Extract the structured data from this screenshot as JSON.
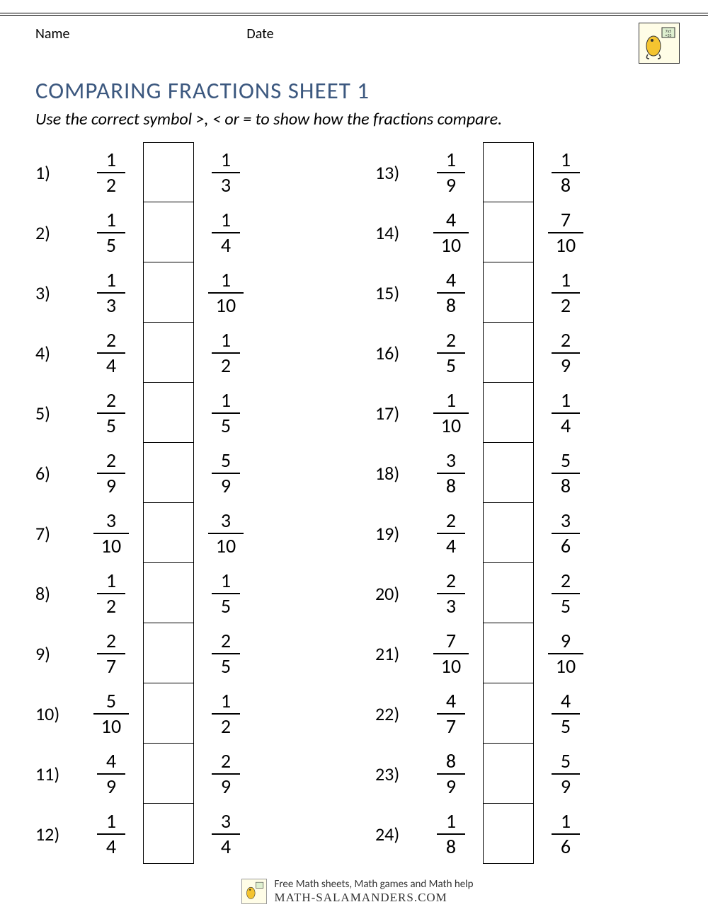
{
  "header": {
    "name_label": "Name",
    "date_label": "Date"
  },
  "title": "COMPARING FRACTIONS SHEET 1",
  "instructions": "Use the correct symbol >, < or = to show how the fractions compare.",
  "columns": [
    [
      {
        "n": "1)",
        "a": [
          "1",
          "2"
        ],
        "b": [
          "1",
          "3"
        ]
      },
      {
        "n": "2)",
        "a": [
          "1",
          "5"
        ],
        "b": [
          "1",
          "4"
        ]
      },
      {
        "n": "3)",
        "a": [
          "1",
          "3"
        ],
        "b": [
          "1",
          "10"
        ]
      },
      {
        "n": "4)",
        "a": [
          "2",
          "4"
        ],
        "b": [
          "1",
          "2"
        ]
      },
      {
        "n": "5)",
        "a": [
          "2",
          "5"
        ],
        "b": [
          "1",
          "5"
        ]
      },
      {
        "n": "6)",
        "a": [
          "2",
          "9"
        ],
        "b": [
          "5",
          "9"
        ]
      },
      {
        "n": "7)",
        "a": [
          "3",
          "10"
        ],
        "b": [
          "3",
          "10"
        ]
      },
      {
        "n": "8)",
        "a": [
          "1",
          "2"
        ],
        "b": [
          "1",
          "5"
        ]
      },
      {
        "n": "9)",
        "a": [
          "2",
          "7"
        ],
        "b": [
          "2",
          "5"
        ]
      },
      {
        "n": "10)",
        "a": [
          "5",
          "10"
        ],
        "b": [
          "1",
          "2"
        ]
      },
      {
        "n": "11)",
        "a": [
          "4",
          "9"
        ],
        "b": [
          "2",
          "9"
        ]
      },
      {
        "n": "12)",
        "a": [
          "1",
          "4"
        ],
        "b": [
          "3",
          "4"
        ]
      }
    ],
    [
      {
        "n": "13)",
        "a": [
          "1",
          "9"
        ],
        "b": [
          "1",
          "8"
        ]
      },
      {
        "n": "14)",
        "a": [
          "4",
          "10"
        ],
        "b": [
          "7",
          "10"
        ]
      },
      {
        "n": "15)",
        "a": [
          "4",
          "8"
        ],
        "b": [
          "1",
          "2"
        ]
      },
      {
        "n": "16)",
        "a": [
          "2",
          "5"
        ],
        "b": [
          "2",
          "9"
        ]
      },
      {
        "n": "17)",
        "a": [
          "1",
          "10"
        ],
        "b": [
          "1",
          "4"
        ]
      },
      {
        "n": "18)",
        "a": [
          "3",
          "8"
        ],
        "b": [
          "5",
          "8"
        ]
      },
      {
        "n": "19)",
        "a": [
          "2",
          "4"
        ],
        "b": [
          "3",
          "6"
        ]
      },
      {
        "n": "20)",
        "a": [
          "2",
          "3"
        ],
        "b": [
          "2",
          "5"
        ]
      },
      {
        "n": "21)",
        "a": [
          "7",
          "10"
        ],
        "b": [
          "9",
          "10"
        ]
      },
      {
        "n": "22)",
        "a": [
          "4",
          "7"
        ],
        "b": [
          "4",
          "5"
        ]
      },
      {
        "n": "23)",
        "a": [
          "8",
          "9"
        ],
        "b": [
          "5",
          "9"
        ]
      },
      {
        "n": "24)",
        "a": [
          "1",
          "8"
        ],
        "b": [
          "1",
          "6"
        ]
      }
    ]
  ],
  "footer": {
    "line1": "Free Math sheets, Math games and Math help",
    "site": "MATH-SALAMANDERS.COM"
  },
  "colors": {
    "title": "#3c587f",
    "text": "#000000",
    "background": "#ffffff",
    "border": "#000000"
  }
}
